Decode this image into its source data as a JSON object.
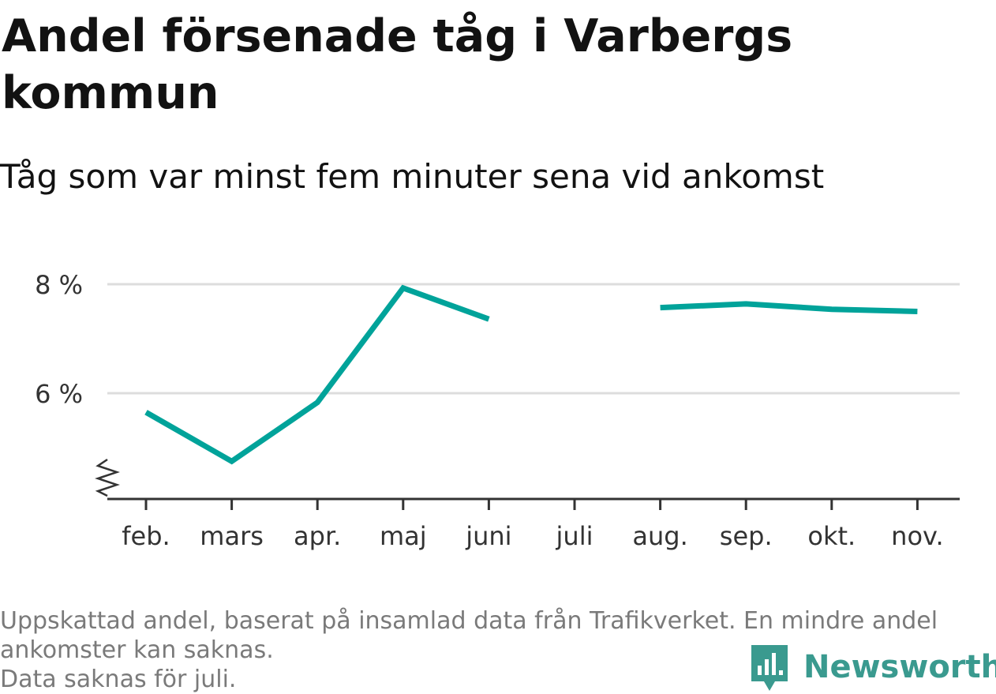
{
  "title": "Andel försenade tåg i Varbergs kommun",
  "subtitle": "Tåg som var minst fem minuter sena vid ankomst",
  "footnote": {
    "line1": "Uppskattad andel, baserat på insamlad data från Trafikverket. En mindre andel",
    "line2": "ankomster kan saknas.",
    "line3": "Data saknas för juli."
  },
  "brand": {
    "name": "Newsworthy",
    "icon": "newsworthy-logo-icon",
    "color": "#3a9a8f"
  },
  "colors": {
    "line": "#00a39a",
    "grid": "#dddddd",
    "axis": "#333333",
    "tick_text": "#333333"
  },
  "chart_data": {
    "type": "line",
    "categories": [
      "feb.",
      "mars",
      "apr.",
      "maj",
      "juni",
      "juli",
      "aug.",
      "sep.",
      "okt.",
      "nov."
    ],
    "series": [
      {
        "values": [
          5.65,
          4.75,
          5.83,
          7.93,
          7.36,
          null,
          7.57,
          7.64,
          7.54,
          7.5
        ]
      }
    ],
    "y_ticks": [
      6,
      8
    ],
    "y_tick_labels": [
      "6 %",
      "8 %"
    ],
    "ylim": [
      4.25,
      8.5
    ],
    "y_axis_break": true,
    "grid": true,
    "legend": "none",
    "xlabel": "",
    "ylabel": ""
  }
}
